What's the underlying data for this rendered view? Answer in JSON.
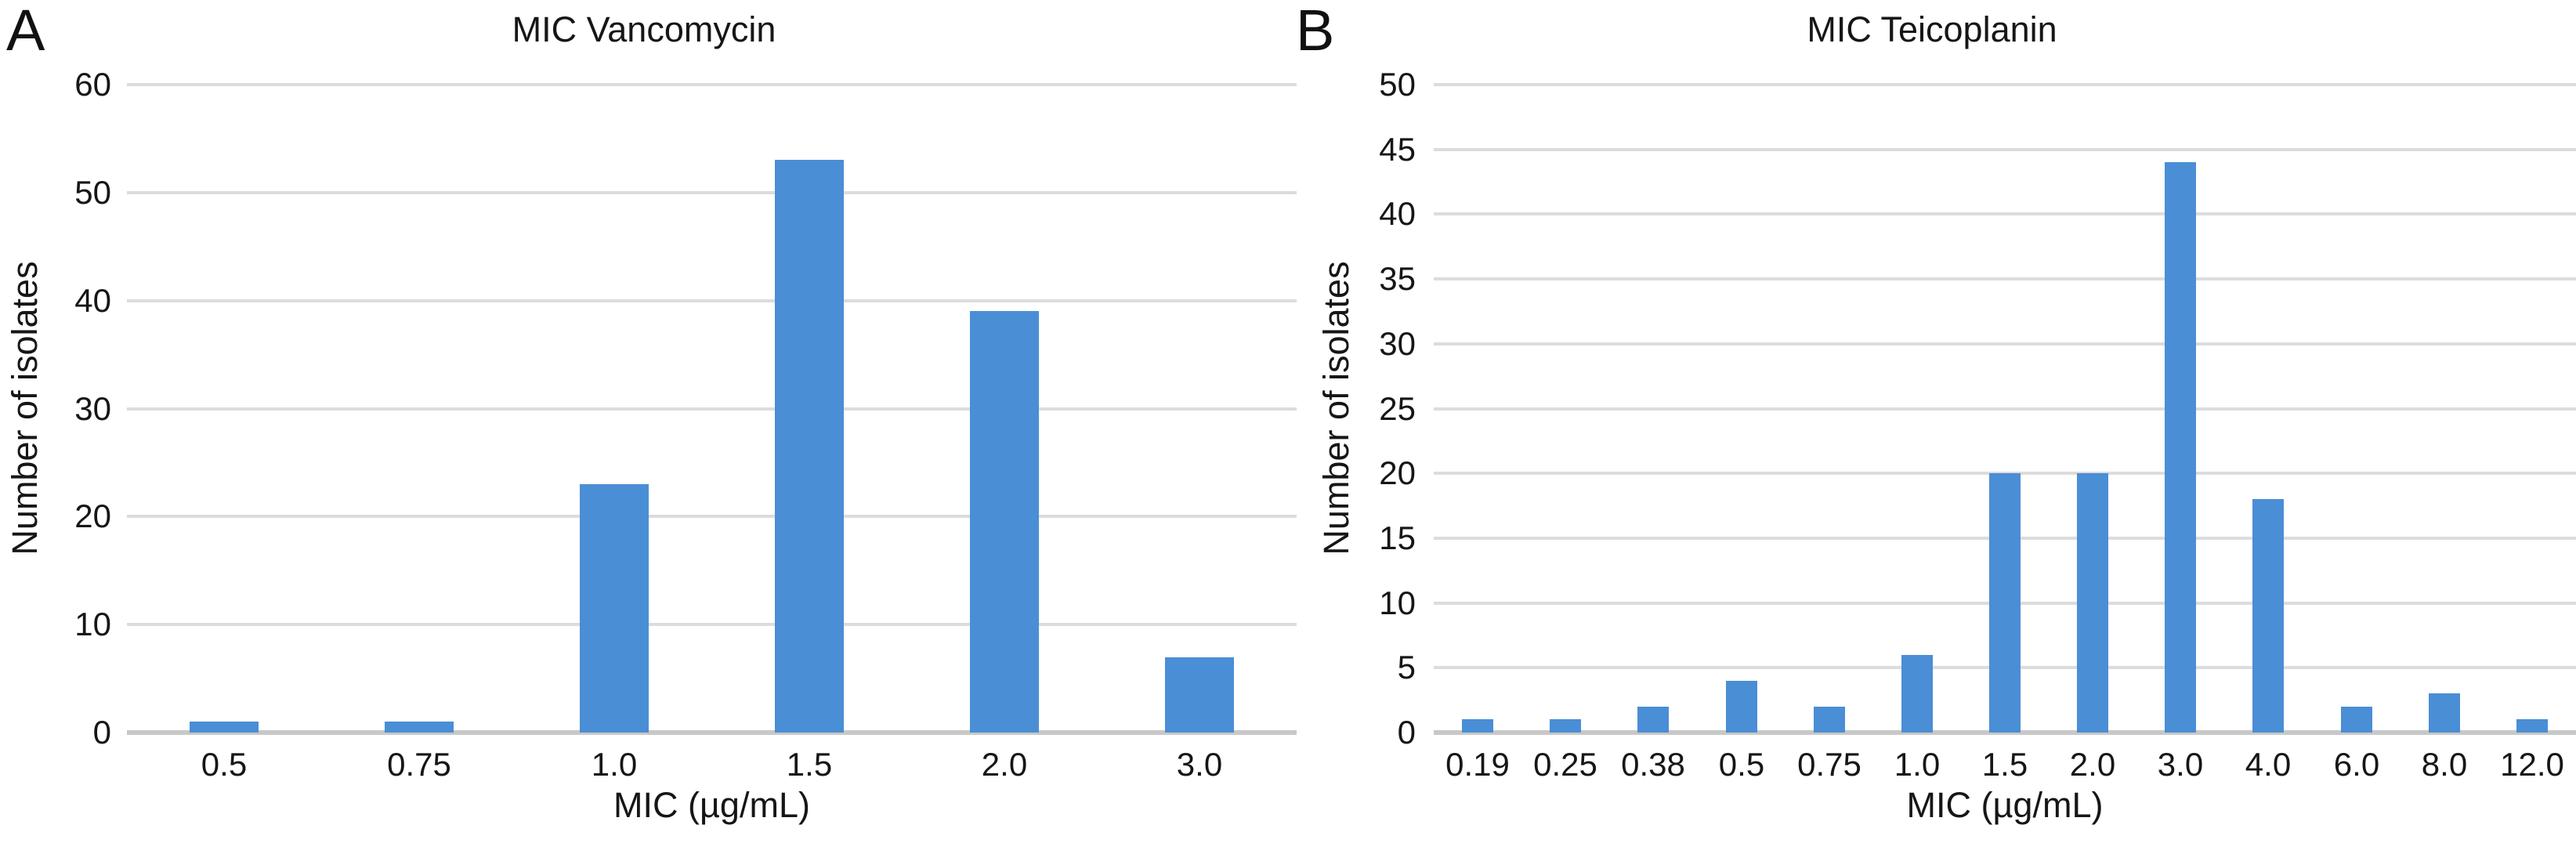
{
  "figure": {
    "panels": [
      {
        "label": "A"
      },
      {
        "label": "B"
      }
    ]
  },
  "chart_data": [
    {
      "type": "bar",
      "title": "MIC Vancomycin",
      "categories": [
        "0.5",
        "0.75",
        "1.0",
        "1.5",
        "2.0",
        "3.0"
      ],
      "values": [
        1,
        1,
        23,
        53,
        39,
        7
      ],
      "xlabel": "MIC (µg/mL)",
      "ylabel": "Number of isolates",
      "ylim": [
        0,
        60
      ],
      "ytick_step": 10,
      "grid": true,
      "legend": "none"
    },
    {
      "type": "bar",
      "title": "MIC Teicoplanin",
      "categories": [
        "0.19",
        "0.25",
        "0.38",
        "0.5",
        "0.75",
        "1.0",
        "1.5",
        "2.0",
        "3.0",
        "4.0",
        "6.0",
        "8.0",
        "12.0"
      ],
      "values": [
        1,
        1,
        2,
        4,
        2,
        6,
        20,
        20,
        44,
        18,
        2,
        3,
        1
      ],
      "xlabel": "MIC (µg/mL)",
      "ylabel": "Number of isolates",
      "ylim": [
        0,
        50
      ],
      "ytick_step": 5,
      "grid": true,
      "legend": "none"
    }
  ],
  "colors": {
    "bar": "#4a8ed5",
    "grid_line": "#dcdcdc",
    "axis_line": "#c8c8c8",
    "text": "#161616"
  }
}
